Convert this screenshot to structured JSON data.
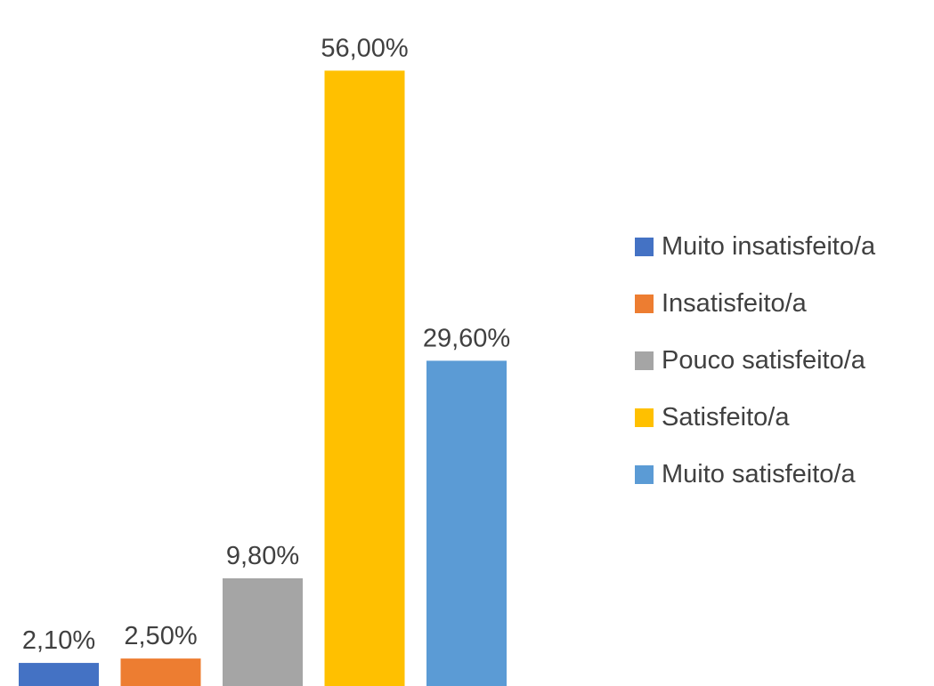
{
  "chart_data": {
    "type": "bar",
    "categories": [
      "Muito insatisfeito/a",
      "Insatisfeito/a",
      "Pouco satisfeito/a",
      "Satisfeito/a",
      "Muito satisfeito/a"
    ],
    "values": [
      2.1,
      2.5,
      9.8,
      56.0,
      29.6
    ],
    "data_labels": [
      "2,10%",
      "2,50%",
      "9,80%",
      "56,00%",
      "29,60%"
    ],
    "colors": [
      "#4472C4",
      "#ED7D31",
      "#A5A5A5",
      "#FFC000",
      "#5B9BD5"
    ],
    "title": "",
    "xlabel": "",
    "ylabel": "",
    "ylim": [
      0,
      60
    ],
    "grid": false,
    "axes_visible": false,
    "legend_position": "right"
  }
}
